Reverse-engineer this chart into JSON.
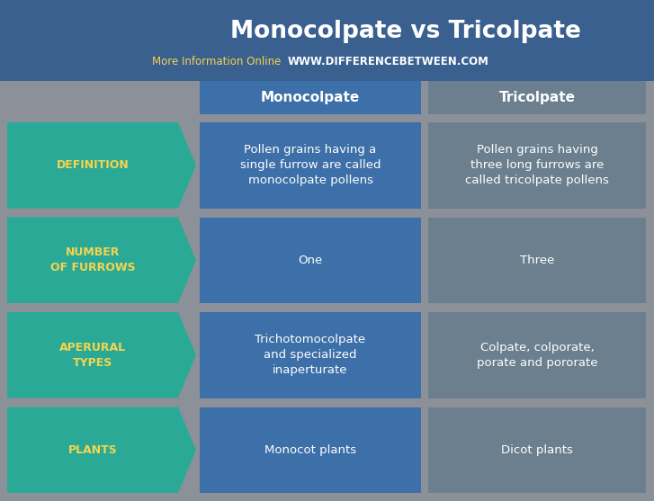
{
  "title": "Monocolpate vs Tricolpate",
  "subtitle_normal": "More Information Online  ",
  "subtitle_url": "WWW.DIFFERENCEBETWEEN.COM",
  "bg_color": "#8c9199",
  "title_bg_color": "#3a6090",
  "header_col1_color": "#3d6fa8",
  "header_col2_color": "#6b7f8e",
  "cell_col1_color": "#3d6fa8",
  "cell_col2_color": "#6b7f8e",
  "arrow_color": "#2aaa96",
  "arrow_text_color": "#f5d44e",
  "header_text_color": "#ffffff",
  "cell_text_color": "#ffffff",
  "title_text_color": "#ffffff",
  "subtitle_normal_color": "#f5d44e",
  "subtitle_url_color": "#ffffff",
  "rows": [
    {
      "label": "DEFINITION",
      "col1": "Pollen grains having a\nsingle furrow are called\nmonocolpate pollens",
      "col2": "Pollen grains having\nthree long furrows are\ncalled tricolpate pollens"
    },
    {
      "label": "NUMBER\nOF FURROWS",
      "col1": "One",
      "col2": "Three"
    },
    {
      "label": "APERURAL\nTYPES",
      "col1": "Trichotomocolpate\nand specialized\ninaperturate",
      "col2": "Colpate, colporate,\nporate and pororate"
    },
    {
      "label": "PLANTS",
      "col1": "Monocot plants",
      "col2": "Dicot plants"
    }
  ]
}
